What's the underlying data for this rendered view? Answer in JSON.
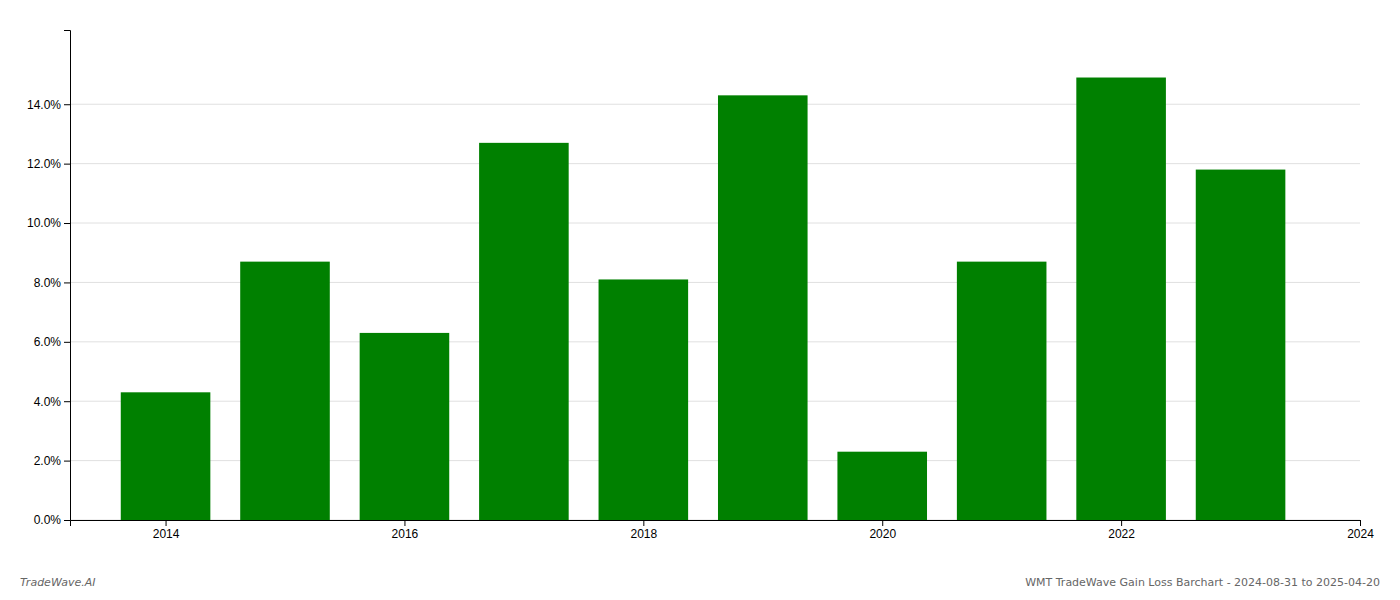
{
  "chart_data": {
    "type": "bar",
    "x": [
      2014,
      2015,
      2016,
      2017,
      2018,
      2019,
      2020,
      2021,
      2022,
      2023
    ],
    "values": [
      0.043,
      0.087,
      0.063,
      0.127,
      0.081,
      0.143,
      0.023,
      0.087,
      0.149,
      0.118
    ],
    "color": "#008000",
    "xlim": [
      2013.2,
      2024
    ],
    "xticks": [
      2014,
      2016,
      2018,
      2020,
      2022,
      2024
    ],
    "ylim": [
      0,
      0.165
    ],
    "yticks": [
      {
        "value": 0.0,
        "label": "0.0%"
      },
      {
        "value": 0.02,
        "label": "2.0%"
      },
      {
        "value": 0.04,
        "label": "4.0%"
      },
      {
        "value": 0.06,
        "label": "6.0%"
      },
      {
        "value": 0.08,
        "label": "8.0%"
      },
      {
        "value": 0.1,
        "label": "10.0%"
      },
      {
        "value": 0.12,
        "label": "12.0%"
      },
      {
        "value": 0.14,
        "label": "14.0%"
      }
    ],
    "grid": true,
    "annotations": [
      "TradeWave.AI",
      "WMT TradeWave Gain Loss Barchart - 2024-08-31 to 2025-04-20"
    ]
  }
}
